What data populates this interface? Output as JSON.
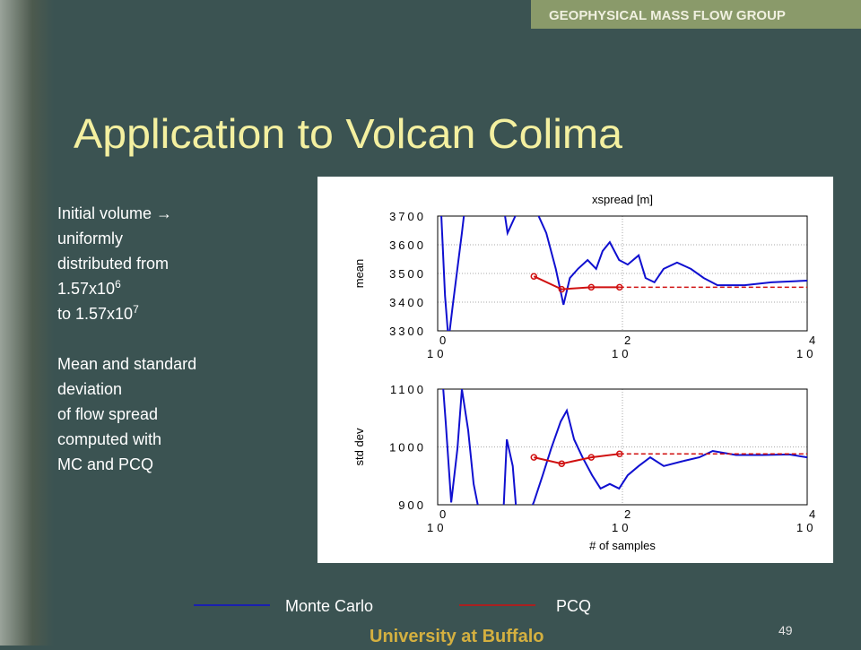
{
  "header": {
    "group": "GEOPHYSICAL MASS FLOW GROUP"
  },
  "title": "Application to Volcan Colima",
  "body": [
    {
      "text": "Initial volume →"
    },
    {
      "text": "uniformly"
    },
    {
      "text": "distributed from"
    },
    {
      "text": "1.57x10",
      "sup": "6"
    },
    {
      "text": "to 1.57x10",
      "sup": "7"
    },
    {
      "text": "Mean and standard",
      "gap": true
    },
    {
      "text": "deviation"
    },
    {
      "text": "of flow spread"
    },
    {
      "text": "computed with"
    },
    {
      "text": "MC and PCQ"
    }
  ],
  "footer": {
    "university": "University at Buffalo",
    "page": 49
  },
  "chart_data": [
    {
      "type": "line",
      "title": "xspread [m]",
      "ylabel": "mean",
      "log_x": true,
      "grid": true,
      "xlim": [
        1,
        10000
      ],
      "xticks": [
        {
          "value": 1,
          "label": "10",
          "sup": "0"
        },
        {
          "value": 100,
          "label": "10",
          "sup": "2"
        },
        {
          "value": 10000,
          "label": "10",
          "sup": "4"
        }
      ],
      "ylim": [
        3300,
        3700
      ],
      "yticks": [
        3300,
        3400,
        3500,
        3600,
        3700
      ],
      "series": [
        {
          "name": "Monte Carlo",
          "color": "#1010d0",
          "x": [
            1.05,
            1.2,
            1.31,
            1.46,
            1.83,
            2.14,
            5,
            5.7,
            7,
            8.2,
            15,
            19,
            23,
            27,
            33,
            42,
            52,
            61,
            73,
            92,
            114,
            150,
            178,
            222,
            279,
            390,
            550,
            760,
            1070,
            2100,
            4100,
            10000
          ],
          "values": [
            3828,
            3422,
            3266,
            3391,
            3641,
            3828,
            3766,
            3641,
            3703,
            3828,
            3641,
            3516,
            3391,
            3484,
            3516,
            3547,
            3516,
            3578,
            3609,
            3547,
            3531,
            3563,
            3484,
            3469,
            3516,
            3538,
            3516,
            3484,
            3459,
            3459,
            3469,
            3475
          ]
        },
        {
          "name": "PCQ",
          "color": "#d01010",
          "markers": true,
          "x": [
            11,
            22,
            46,
            93
          ],
          "values": [
            3490,
            3445,
            3452,
            3452
          ],
          "extension": {
            "x": [
              93,
              10000
            ],
            "values": [
              3452,
              3452
            ]
          }
        }
      ]
    },
    {
      "type": "line",
      "ylabel": "std dev",
      "xlabel": "# of samples",
      "log_x": true,
      "grid": true,
      "xlim": [
        1,
        10000
      ],
      "xticks": [
        {
          "value": 1,
          "label": "10",
          "sup": "0"
        },
        {
          "value": 100,
          "label": "10",
          "sup": "2"
        },
        {
          "value": 10000,
          "label": "10",
          "sup": "4"
        }
      ],
      "ylim": [
        900,
        1100
      ],
      "yticks": [
        900,
        1000,
        1100
      ],
      "series": [
        {
          "name": "Monte Carlo",
          "color": "#1010d0",
          "x": [
            1.05,
            1.22,
            1.4,
            1.64,
            1.83,
            2.14,
            2.45,
            3.2,
            5,
            5.6,
            6.5,
            7.5,
            11,
            13.7,
            17,
            21.5,
            25,
            30,
            37,
            47,
            58,
            73,
            92,
            114,
            150,
            200,
            280,
            440,
            680,
            950,
            1700,
            3300,
            6400,
            10000
          ],
          "values": [
            1184,
            1044,
            904,
            998,
            1100,
            1029,
            936,
            843,
            843,
            1013,
            967,
            843,
            905,
            951,
            998,
            1044,
            1063,
            1013,
            982,
            951,
            928,
            936,
            928,
            951,
            967,
            982,
            967,
            975,
            982,
            993,
            986,
            986,
            987,
            982
          ]
        },
        {
          "name": "PCQ",
          "color": "#d01010",
          "markers": true,
          "x": [
            11,
            22,
            46,
            93
          ],
          "values": [
            982,
            971,
            982,
            988
          ],
          "extension": {
            "x": [
              93,
              10000
            ],
            "values": [
              988,
              988
            ]
          }
        }
      ]
    }
  ]
}
